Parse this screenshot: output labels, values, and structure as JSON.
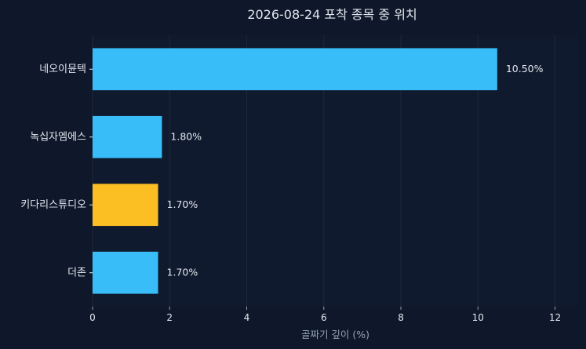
{
  "chart_data": {
    "type": "bar",
    "orientation": "horizontal",
    "title": "2026-08-24 포착 종목 중 위치",
    "xlabel": "골짜기 깊이 (%)",
    "ylabel": "",
    "xlim": [
      0,
      12.6
    ],
    "xticks": [
      0,
      2,
      4,
      6,
      8,
      10,
      12
    ],
    "grid": "vertical",
    "categories": [
      "네오이뮨텍",
      "녹십자엠에스",
      "키다리스튜디오",
      "더존"
    ],
    "values": [
      10.5,
      1.8,
      1.7,
      1.7
    ],
    "value_labels": [
      "10.50%",
      "1.80%",
      "1.70%",
      "1.70%"
    ],
    "bar_colors": [
      "#38bdf8",
      "#38bdf8",
      "#fbbf24",
      "#38bdf8"
    ],
    "colors": {
      "background": "#0f172a",
      "plot_background": "#101a2e",
      "grid": "#1e293b",
      "text": "#e2e8f0",
      "muted_text": "#94a3b8"
    }
  }
}
